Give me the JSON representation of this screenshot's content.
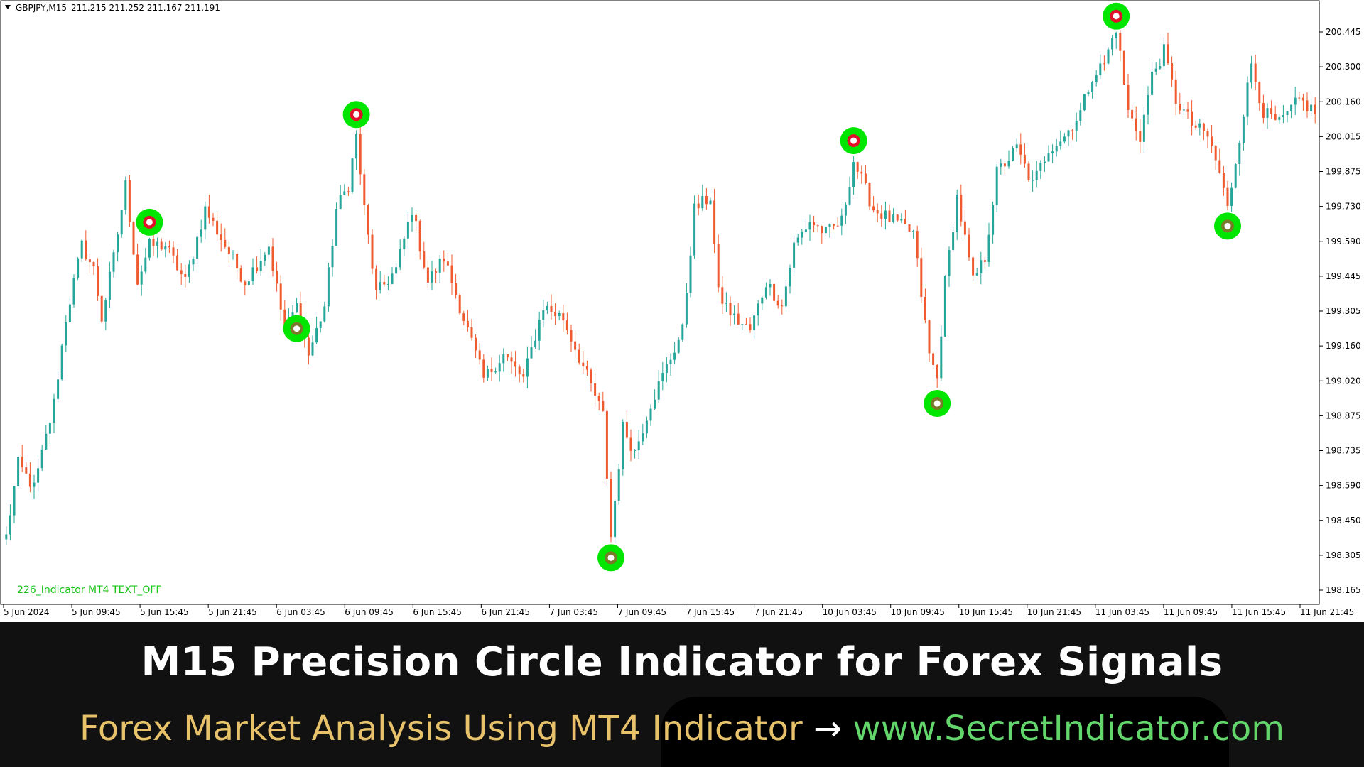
{
  "header": {
    "triangle_icon": "triangle-down-icon",
    "symbol": "GBPJPY,M15",
    "ohlc": "211.215 211.252 211.167 211.191"
  },
  "indicator_label": "226_Indicator MT4 TEXT_OFF",
  "colors": {
    "bull": "#26a69a",
    "bear": "#ef5a2f",
    "signal_ring": "#00e600",
    "signal_top_core": "#e0102a",
    "signal_bottom_core": "#7a7a2a",
    "banner_bg": "#111111",
    "banner_title": "#ffffff",
    "banner_sub_left": "#e7c26a",
    "banner_sub_right": "#63d66b"
  },
  "banner": {
    "title": "M15 Precision Circle Indicator for Forex Signals",
    "subtitle_left": "Forex Market Analysis Using MT4 Indicator",
    "subtitle_arrow": "→",
    "subtitle_right": "www.SecretIndicator.com"
  },
  "chart_data": {
    "type": "candlestick",
    "ylim": [
      198.08,
      200.55
    ],
    "y_ticks": [
      "200.445",
      "200.300",
      "200.160",
      "200.015",
      "199.875",
      "199.730",
      "199.590",
      "199.445",
      "199.305",
      "199.160",
      "199.020",
      "198.875",
      "198.735",
      "198.590",
      "198.450",
      "198.305",
      "198.165"
    ],
    "x_ticks": [
      "5 Jun 2024",
      "5 Jun 09:45",
      "5 Jun 15:45",
      "5 Jun 21:45",
      "6 Jun 03:45",
      "6 Jun 09:45",
      "6 Jun 15:45",
      "6 Jun 21:45",
      "7 Jun 03:45",
      "7 Jun 09:45",
      "7 Jun 15:45",
      "7 Jun 21:45",
      "10 Jun 03:45",
      "10 Jun 09:45",
      "10 Jun 15:45",
      "10 Jun 21:45",
      "11 Jun 03:45",
      "11 Jun 09:45",
      "11 Jun 15:45",
      "11 Jun 21:45"
    ],
    "path_points": [
      [
        0,
        198.35
      ],
      [
        3,
        198.65
      ],
      [
        7,
        198.55
      ],
      [
        12,
        198.9
      ],
      [
        15,
        199.25
      ],
      [
        19,
        199.55
      ],
      [
        22,
        199.45
      ],
      [
        24,
        199.25
      ],
      [
        27,
        199.5
      ],
      [
        30,
        199.8
      ],
      [
        33,
        199.4
      ],
      [
        36,
        199.55
      ],
      [
        40,
        199.55
      ],
      [
        45,
        199.4
      ],
      [
        50,
        199.7
      ],
      [
        55,
        199.55
      ],
      [
        60,
        199.4
      ],
      [
        66,
        199.55
      ],
      [
        70,
        199.2
      ],
      [
        73,
        199.3
      ],
      [
        76,
        199.1
      ],
      [
        80,
        199.3
      ],
      [
        83,
        199.7
      ],
      [
        86,
        199.8
      ],
      [
        88,
        200.0
      ],
      [
        90,
        199.7
      ],
      [
        93,
        199.35
      ],
      [
        98,
        199.45
      ],
      [
        102,
        199.7
      ],
      [
        106,
        199.4
      ],
      [
        110,
        199.5
      ],
      [
        115,
        199.25
      ],
      [
        120,
        199.0
      ],
      [
        125,
        199.1
      ],
      [
        130,
        199.0
      ],
      [
        135,
        199.3
      ],
      [
        140,
        199.25
      ],
      [
        145,
        199.05
      ],
      [
        150,
        198.85
      ],
      [
        152,
        198.35
      ],
      [
        155,
        198.8
      ],
      [
        158,
        198.7
      ],
      [
        162,
        198.9
      ],
      [
        166,
        199.05
      ],
      [
        170,
        199.2
      ],
      [
        173,
        199.7
      ],
      [
        177,
        199.75
      ],
      [
        179,
        199.35
      ],
      [
        183,
        199.25
      ],
      [
        187,
        199.2
      ],
      [
        191,
        199.4
      ],
      [
        195,
        199.3
      ],
      [
        198,
        199.55
      ],
      [
        202,
        199.65
      ],
      [
        206,
        199.6
      ],
      [
        210,
        199.65
      ],
      [
        213,
        199.9
      ],
      [
        218,
        199.7
      ],
      [
        223,
        199.65
      ],
      [
        228,
        199.6
      ],
      [
        230,
        199.35
      ],
      [
        232,
        199.1
      ],
      [
        234,
        199.0
      ],
      [
        236,
        199.4
      ],
      [
        239,
        199.75
      ],
      [
        243,
        199.4
      ],
      [
        246,
        199.5
      ],
      [
        249,
        199.85
      ],
      [
        254,
        199.95
      ],
      [
        258,
        199.8
      ],
      [
        262,
        199.95
      ],
      [
        266,
        200.0
      ],
      [
        270,
        200.1
      ],
      [
        273,
        200.25
      ],
      [
        276,
        200.3
      ],
      [
        279,
        200.45
      ],
      [
        282,
        200.1
      ],
      [
        285,
        200.0
      ],
      [
        288,
        200.25
      ],
      [
        291,
        200.35
      ],
      [
        294,
        200.15
      ],
      [
        298,
        200.05
      ],
      [
        302,
        200.0
      ],
      [
        305,
        199.85
      ],
      [
        307,
        199.7
      ],
      [
        310,
        200.0
      ],
      [
        313,
        200.3
      ],
      [
        316,
        200.1
      ],
      [
        320,
        200.05
      ],
      [
        325,
        200.15
      ],
      [
        329,
        200.1
      ]
    ],
    "signals": [
      {
        "type": "top",
        "index": 36
      },
      {
        "type": "bottom",
        "index": 73
      },
      {
        "type": "top",
        "index": 88
      },
      {
        "type": "bottom",
        "index": 152
      },
      {
        "type": "top",
        "index": 213
      },
      {
        "type": "bottom",
        "index": 234
      },
      {
        "type": "top",
        "index": 279
      },
      {
        "type": "bottom",
        "index": 307
      }
    ],
    "grid": false
  }
}
